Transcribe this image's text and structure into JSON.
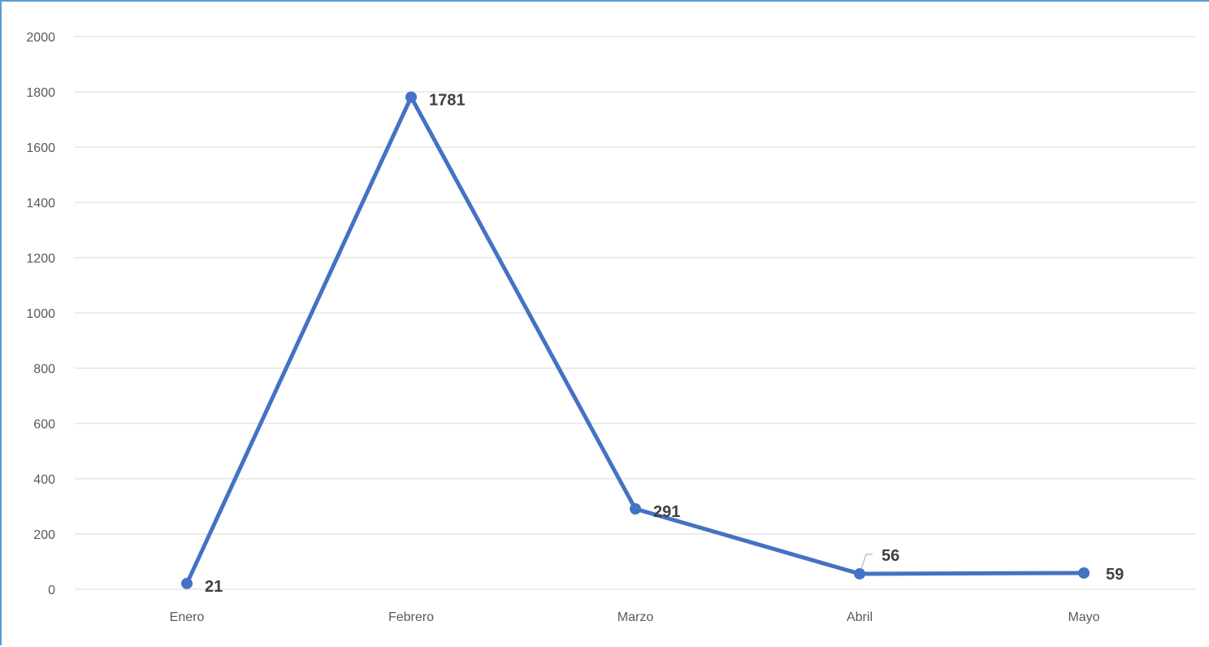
{
  "chart_data": {
    "type": "line",
    "title": "",
    "xlabel": "",
    "ylabel": "",
    "categories": [
      "Enero",
      "Febrero",
      "Marzo",
      "Abril",
      "Mayo"
    ],
    "series": [
      {
        "values": [
          21,
          1781,
          291,
          56,
          59
        ],
        "color": "#4472c4",
        "marker": "circle"
      }
    ],
    "data_labels": [
      "21",
      "1781",
      "291",
      "56",
      "59"
    ],
    "ylim": [
      0,
      2000
    ],
    "yticks": [
      "0",
      "200",
      "400",
      "600",
      "800",
      "1000",
      "1200",
      "1400",
      "1600",
      "1800",
      "2000"
    ],
    "grid": true,
    "gridline_color": "#d9d9d9",
    "frame_color": "#5b9bd5",
    "legend": "none"
  }
}
